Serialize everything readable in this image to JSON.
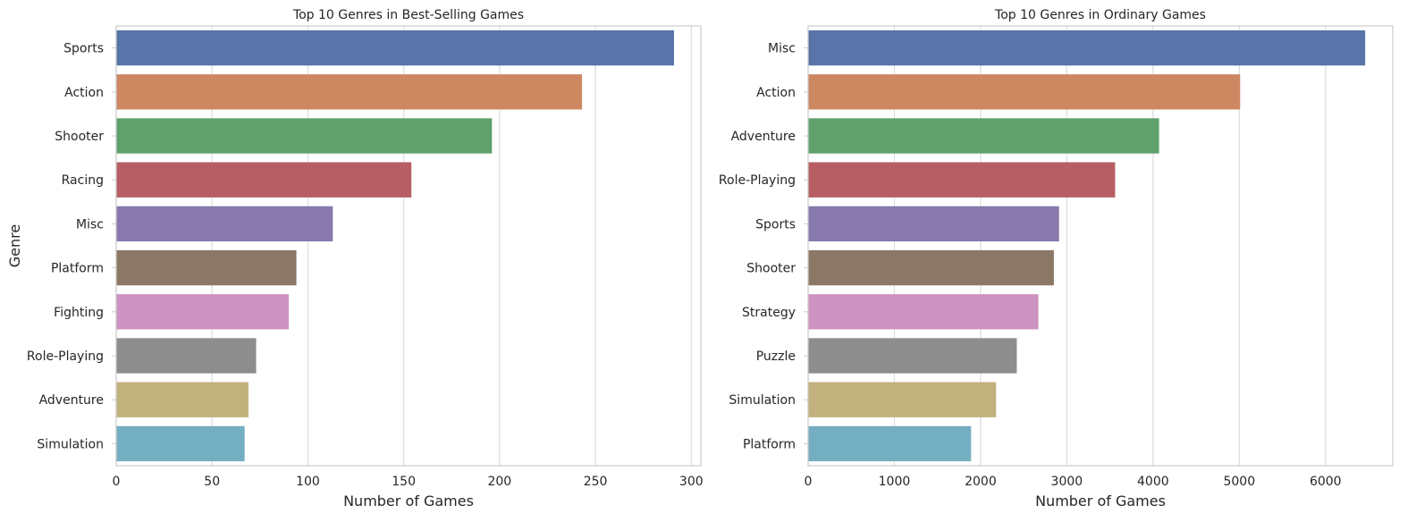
{
  "chart_data": [
    {
      "type": "bar",
      "orientation": "horizontal",
      "title": "Top 10 Genres in Best-Selling Games",
      "xlabel": "Number of Games",
      "ylabel": "Genre",
      "categories": [
        "Sports",
        "Action",
        "Shooter",
        "Racing",
        "Misc",
        "Platform",
        "Fighting",
        "Role-Playing",
        "Adventure",
        "Simulation"
      ],
      "values": [
        291,
        243,
        196,
        154,
        113,
        94,
        90,
        73,
        69,
        67
      ],
      "xlim": [
        0,
        305
      ],
      "xticks": [
        0,
        50,
        100,
        150,
        200,
        250,
        300
      ],
      "grid": true,
      "colors": [
        "#5874a8",
        "#cd8862",
        "#5fa06d",
        "#b75d64",
        "#8779ab",
        "#8c7866",
        "#ce93c0",
        "#8d8d8d",
        "#c1b17c",
        "#74aec1"
      ]
    },
    {
      "type": "bar",
      "orientation": "horizontal",
      "title": "Top 10 Genres in Ordinary Games",
      "xlabel": "Number of Games",
      "ylabel": "",
      "categories": [
        "Misc",
        "Action",
        "Adventure",
        "Role-Playing",
        "Sports",
        "Shooter",
        "Strategy",
        "Puzzle",
        "Simulation",
        "Platform"
      ],
      "values": [
        6460,
        5010,
        4070,
        3560,
        2910,
        2850,
        2670,
        2420,
        2180,
        1890
      ],
      "xlim": [
        0,
        6780
      ],
      "xticks": [
        0,
        1000,
        2000,
        3000,
        4000,
        5000,
        6000
      ],
      "grid": true,
      "colors": [
        "#5874a8",
        "#cd8862",
        "#5fa06d",
        "#b75d64",
        "#8779ab",
        "#8c7866",
        "#ce93c0",
        "#8d8d8d",
        "#c1b17c",
        "#74aec1"
      ]
    }
  ]
}
